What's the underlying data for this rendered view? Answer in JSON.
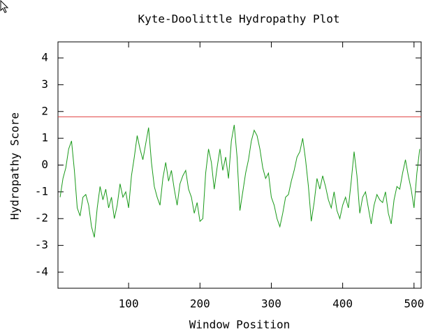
{
  "chart_data": {
    "type": "line",
    "title": "Kyte-Doolittle Hydropathy Plot",
    "x_label": "Window Position",
    "y_label": "Hydropathy Score",
    "color": "#1a9a1a",
    "x": [
      4,
      8,
      12,
      16,
      20,
      24,
      28,
      32,
      36,
      40,
      44,
      48,
      52,
      56,
      60,
      64,
      68,
      72,
      76,
      80,
      84,
      88,
      92,
      96,
      100,
      104,
      108,
      112,
      116,
      120,
      124,
      128,
      132,
      136,
      140,
      144,
      148,
      152,
      156,
      160,
      164,
      168,
      172,
      176,
      180,
      184,
      188,
      192,
      196,
      200,
      204,
      208,
      212,
      216,
      220,
      224,
      228,
      232,
      236,
      240,
      244,
      248,
      252,
      256,
      260,
      264,
      268,
      272,
      276,
      280,
      284,
      288,
      292,
      296,
      300,
      304,
      308,
      312,
      316,
      320,
      324,
      328,
      332,
      336,
      340,
      344,
      348,
      352,
      356,
      360,
      364,
      368,
      372,
      376,
      380,
      384,
      388,
      392,
      396,
      400,
      404,
      408,
      412,
      416,
      420,
      424,
      428,
      432,
      436,
      440,
      444,
      448,
      452,
      456,
      460,
      464,
      468,
      472,
      476,
      480,
      484,
      488,
      492,
      496,
      500,
      504,
      508
    ],
    "values": [
      -1.2,
      -0.5,
      -0.1,
      0.6,
      0.9,
      -0.2,
      -1.6,
      -1.9,
      -1.2,
      -1.1,
      -1.5,
      -2.3,
      -2.7,
      -1.6,
      -0.8,
      -1.3,
      -0.9,
      -1.6,
      -1.2,
      -2.0,
      -1.5,
      -0.7,
      -1.2,
      -1.0,
      -1.6,
      -0.4,
      0.3,
      1.1,
      0.6,
      0.2,
      0.8,
      1.4,
      0.1,
      -0.8,
      -1.2,
      -1.5,
      -0.5,
      0.1,
      -0.6,
      -0.2,
      -0.9,
      -1.5,
      -0.7,
      -0.4,
      -0.2,
      -0.9,
      -1.2,
      -1.8,
      -1.4,
      -2.1,
      -2.0,
      -0.3,
      0.6,
      0.1,
      -0.9,
      -0.1,
      0.6,
      -0.2,
      0.3,
      -0.5,
      0.9,
      1.5,
      0.3,
      -1.7,
      -1.0,
      -0.3,
      0.2,
      0.9,
      1.3,
      1.1,
      0.6,
      -0.1,
      -0.5,
      -0.3,
      -1.2,
      -1.5,
      -2.0,
      -2.3,
      -1.8,
      -1.2,
      -1.1,
      -0.6,
      -0.2,
      0.3,
      0.5,
      1.0,
      0.2,
      -0.8,
      -2.1,
      -1.4,
      -0.5,
      -0.9,
      -0.4,
      -0.8,
      -1.3,
      -1.6,
      -1.0,
      -1.7,
      -2.0,
      -1.5,
      -1.2,
      -1.6,
      -0.6,
      0.5,
      -0.4,
      -1.8,
      -1.2,
      -1.0,
      -1.6,
      -2.2,
      -1.5,
      -1.1,
      -1.3,
      -1.4,
      -1.0,
      -1.8,
      -2.2,
      -1.3,
      -0.8,
      -0.9,
      -0.3,
      0.2,
      -0.4,
      -0.9,
      -1.6,
      -0.3,
      0.6
    ],
    "reference_line": {
      "value": 1.8,
      "color": "#e04040"
    },
    "xlim": [
      1,
      510
    ],
    "ylim": [
      -4.6,
      4.6
    ],
    "xticks": [
      100,
      200,
      300,
      400,
      500
    ],
    "yticks": [
      -4,
      -3,
      -2,
      -1,
      0,
      1,
      2,
      3,
      4
    ]
  }
}
